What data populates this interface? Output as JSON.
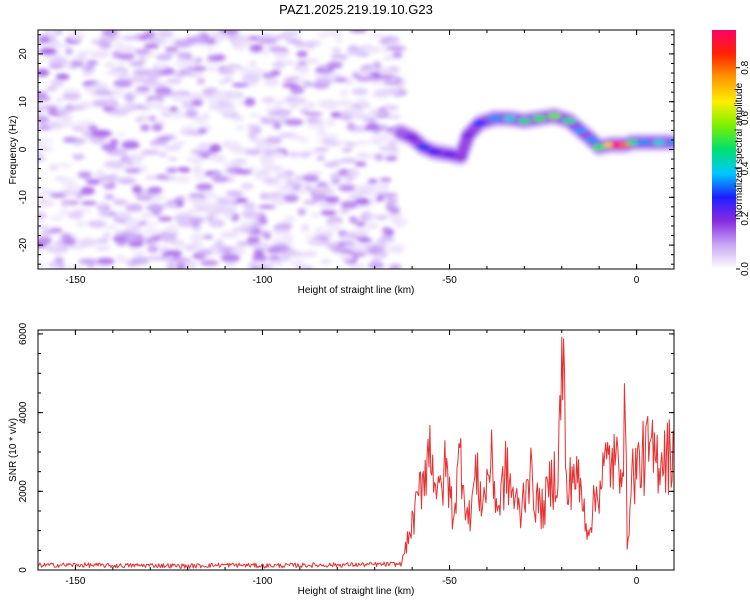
{
  "title": "PAZ1.2025.219.19.10.G23",
  "chart_data": [
    {
      "type": "heatmap",
      "xlabel": "Height of straight line (km)",
      "ylabel": "Frequency (Hz)",
      "xlim": [
        -160,
        10
      ],
      "ylim": [
        -25,
        25
      ],
      "x_ticks": [
        -150,
        -100,
        -50,
        0
      ],
      "x_tick_labels": [
        "-150",
        "-100",
        "-50",
        "0"
      ],
      "y_ticks": [
        -20,
        -10,
        0,
        10,
        20
      ],
      "y_tick_labels": [
        "-20",
        "-10",
        "0",
        "10",
        "20"
      ],
      "colorbar": {
        "label": "Normalized spectral amplitude",
        "range": [
          0,
          0.95
        ],
        "ticks": [
          0,
          0.2,
          0.4,
          0.6,
          0.8
        ],
        "tick_labels": [
          "0.0",
          "0.2",
          "0.4",
          "0.6",
          "0.8"
        ],
        "colors": [
          "#ffffff",
          "#c9a8f5",
          "#8a2be2",
          "#1e1eff",
          "#00c8ff",
          "#00e070",
          "#7cf000",
          "#ffee00",
          "#ff9900",
          "#ff2200",
          "#ff0066"
        ]
      },
      "noise_region": {
        "x_range": [
          -160,
          -63
        ],
        "y_range": [
          -25,
          25
        ],
        "level": 0.08
      },
      "signal_track": [
        {
          "x": -63,
          "y": 3.5,
          "amp": 0.15
        },
        {
          "x": -60,
          "y": 2.5,
          "amp": 0.2
        },
        {
          "x": -57,
          "y": 0.5,
          "amp": 0.3
        },
        {
          "x": -54,
          "y": -0.5,
          "amp": 0.25
        },
        {
          "x": -50,
          "y": -1,
          "amp": 0.22
        },
        {
          "x": -47,
          "y": -1.5,
          "amp": 0.18
        },
        {
          "x": -45,
          "y": 3,
          "amp": 0.2
        },
        {
          "x": -42,
          "y": 5.5,
          "amp": 0.3
        },
        {
          "x": -38,
          "y": 6.5,
          "amp": 0.35
        },
        {
          "x": -34,
          "y": 6.5,
          "amp": 0.4
        },
        {
          "x": -30,
          "y": 6,
          "amp": 0.45
        },
        {
          "x": -26,
          "y": 6.5,
          "amp": 0.5
        },
        {
          "x": -22,
          "y": 7,
          "amp": 0.55
        },
        {
          "x": -18,
          "y": 6,
          "amp": 0.45
        },
        {
          "x": -15,
          "y": 4,
          "amp": 0.35
        },
        {
          "x": -12,
          "y": 2,
          "amp": 0.35
        },
        {
          "x": -10,
          "y": 0.5,
          "amp": 0.5
        },
        {
          "x": -7,
          "y": 1,
          "amp": 0.7
        },
        {
          "x": -5,
          "y": 1,
          "amp": 0.95
        },
        {
          "x": -3,
          "y": 1,
          "amp": 0.8
        },
        {
          "x": -1,
          "y": 1.5,
          "amp": 0.45
        },
        {
          "x": 2,
          "y": 1.5,
          "amp": 0.35
        },
        {
          "x": 6,
          "y": 1.5,
          "amp": 0.4
        },
        {
          "x": 10,
          "y": 1.5,
          "amp": 0.35
        }
      ]
    },
    {
      "type": "line",
      "xlabel": "Height of straight line (km)",
      "ylabel": "SNR (10 * v/v)",
      "xlim": [
        -160,
        10
      ],
      "ylim": [
        0,
        6100
      ],
      "x_ticks": [
        -150,
        -100,
        -50,
        0
      ],
      "x_tick_labels": [
        "-150",
        "-100",
        "-50",
        "0"
      ],
      "y_ticks": [
        0,
        2000,
        4000,
        6000
      ],
      "y_tick_labels": [
        "0",
        "2000",
        "4000",
        "6000"
      ],
      "color": "#e83030",
      "x": [
        -160,
        -150,
        -140,
        -130,
        -120,
        -110,
        -100,
        -90,
        -80,
        -70,
        -63,
        -61,
        -59,
        -57,
        -55,
        -53,
        -51,
        -49,
        -47,
        -45,
        -43,
        -41,
        -39,
        -37,
        -35,
        -33,
        -31,
        -29,
        -27,
        -25,
        -23,
        -21,
        -19.5,
        -19,
        -18.5,
        -17,
        -15,
        -13,
        -11,
        -9,
        -7,
        -5,
        -3,
        -2.5,
        -1,
        1,
        3,
        5,
        7,
        9,
        10
      ],
      "y": [
        120,
        130,
        110,
        120,
        100,
        130,
        110,
        120,
        130,
        140,
        150,
        800,
        1500,
        2500,
        3200,
        1800,
        2600,
        1400,
        3000,
        1200,
        2400,
        1700,
        2800,
        1500,
        2500,
        1900,
        1400,
        2600,
        1800,
        1500,
        2200,
        2600,
        6100,
        2300,
        1800,
        2600,
        2000,
        1000,
        1800,
        2500,
        2800,
        2600,
        3700,
        700,
        2500,
        2700,
        3000,
        2800,
        3000,
        2900,
        3300
      ]
    }
  ]
}
